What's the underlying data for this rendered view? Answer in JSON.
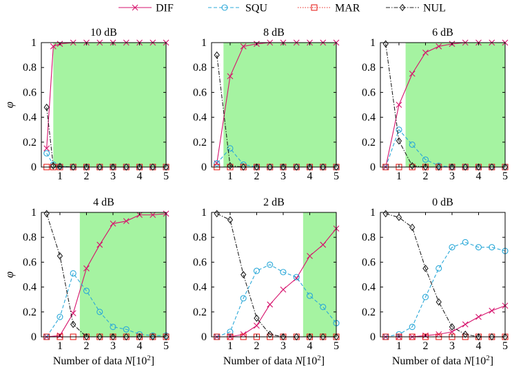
{
  "legend": [
    {
      "name": "DIF",
      "color": "#d6126c",
      "dash": "solid",
      "marker": "x"
    },
    {
      "name": "SQU",
      "color": "#2aa8d8",
      "dash": "dashed",
      "marker": "circle"
    },
    {
      "name": "MAR",
      "color": "#e8231e",
      "dash": "dotted",
      "marker": "square"
    },
    {
      "name": "NUL",
      "color": "#222222",
      "dash": "dashdot",
      "marker": "diamond"
    }
  ],
  "xlabel_prefix": "Number of data ",
  "xlabel_var": "N",
  "xlabel_open": "[10",
  "xlabel_exp": "2",
  "xlabel_close": "]",
  "ylabel": "φ",
  "chart_data": [
    {
      "type": "line",
      "title": "10 dB",
      "xlim": [
        0.3,
        5
      ],
      "ylim": [
        0,
        1
      ],
      "xticks": [
        "1",
        "2",
        "3",
        "4",
        "5"
      ],
      "yticks": [
        "0",
        "0.2",
        "0.4",
        "0.6",
        "0.8",
        "1"
      ],
      "highlight": [
        0.75,
        5
      ],
      "x": [
        0.5,
        0.75,
        1,
        1.5,
        2,
        2.5,
        3,
        3.5,
        4,
        4.5,
        5
      ],
      "series": [
        {
          "name": "DIF",
          "values": [
            0.15,
            0.97,
            0.99,
            1,
            1,
            1,
            1,
            1,
            1,
            1,
            1
          ]
        },
        {
          "name": "SQU",
          "values": [
            0.11,
            0.02,
            0.005,
            0,
            0,
            0,
            0,
            0,
            0,
            0,
            0
          ]
        },
        {
          "name": "MAR",
          "values": [
            0,
            0,
            0,
            0,
            0,
            0,
            0,
            0,
            0,
            0,
            0
          ]
        },
        {
          "name": "NUL",
          "values": [
            0.48,
            0.01,
            0.005,
            0,
            0,
            0,
            0,
            0,
            0,
            0,
            0
          ]
        }
      ]
    },
    {
      "type": "line",
      "title": "8 dB",
      "xlim": [
        0.3,
        5
      ],
      "ylim": [
        0,
        1
      ],
      "xticks": [
        "1",
        "2",
        "3",
        "4",
        "5"
      ],
      "yticks": [
        "0",
        "0.2",
        "0.4",
        "0.6",
        "0.8",
        "1"
      ],
      "highlight": [
        0.75,
        5
      ],
      "x": [
        0.5,
        1,
        1.5,
        2,
        2.5,
        3,
        3.5,
        4,
        4.5,
        5
      ],
      "series": [
        {
          "name": "DIF",
          "values": [
            0.03,
            0.73,
            0.97,
            0.99,
            1,
            1,
            1,
            1,
            1,
            1
          ]
        },
        {
          "name": "SQU",
          "values": [
            0.03,
            0.15,
            0.02,
            0,
            0,
            0,
            0,
            0,
            0,
            0
          ]
        },
        {
          "name": "MAR",
          "values": [
            0,
            0,
            0,
            0,
            0,
            0,
            0,
            0,
            0,
            0
          ]
        },
        {
          "name": "NUL",
          "values": [
            0.9,
            0.01,
            0,
            0,
            0,
            0,
            0,
            0,
            0,
            0
          ]
        }
      ]
    },
    {
      "type": "line",
      "title": "6 dB",
      "xlim": [
        0.3,
        5
      ],
      "ylim": [
        0,
        1
      ],
      "xticks": [
        "1",
        "2",
        "3",
        "4",
        "5"
      ],
      "yticks": [
        "0",
        "0.2",
        "0.4",
        "0.6",
        "0.8",
        "1"
      ],
      "highlight": [
        1.25,
        5
      ],
      "x": [
        0.5,
        1,
        1.5,
        2,
        2.5,
        3,
        3.5,
        4,
        4.5,
        5
      ],
      "series": [
        {
          "name": "DIF",
          "values": [
            0,
            0.5,
            0.75,
            0.92,
            0.97,
            0.99,
            1,
            1,
            1,
            1
          ]
        },
        {
          "name": "SQU",
          "values": [
            0,
            0.3,
            0.18,
            0.06,
            0.01,
            0,
            0,
            0,
            0,
            0
          ]
        },
        {
          "name": "MAR",
          "values": [
            0,
            0,
            0,
            0,
            0,
            0,
            0,
            0,
            0,
            0
          ]
        },
        {
          "name": "NUL",
          "values": [
            0.99,
            0.21,
            0.01,
            0,
            0,
            0,
            0,
            0,
            0,
            0
          ]
        }
      ]
    },
    {
      "type": "line",
      "title": "4 dB",
      "xlim": [
        0.3,
        5
      ],
      "ylim": [
        0,
        1
      ],
      "xticks": [
        "1",
        "2",
        "3",
        "4",
        "5"
      ],
      "yticks": [
        "0",
        "0.2",
        "0.4",
        "0.6",
        "0.8",
        "1"
      ],
      "highlight": [
        1.75,
        5
      ],
      "x": [
        0.5,
        1,
        1.5,
        2,
        2.5,
        3,
        3.5,
        4,
        4.5,
        5
      ],
      "series": [
        {
          "name": "DIF",
          "values": [
            0,
            0.01,
            0.19,
            0.55,
            0.74,
            0.91,
            0.93,
            0.98,
            0.98,
            0.99
          ]
        },
        {
          "name": "SQU",
          "values": [
            0,
            0.16,
            0.51,
            0.37,
            0.2,
            0.08,
            0.06,
            0.02,
            0.01,
            0.01
          ]
        },
        {
          "name": "MAR",
          "values": [
            0,
            0,
            0,
            0,
            0,
            0,
            0,
            0,
            0,
            0
          ]
        },
        {
          "name": "NUL",
          "values": [
            0.99,
            0.65,
            0.1,
            0,
            0,
            0,
            0,
            0,
            0,
            0
          ]
        }
      ]
    },
    {
      "type": "line",
      "title": "2 dB",
      "xlim": [
        0.3,
        5
      ],
      "ylim": [
        0,
        1
      ],
      "xticks": [
        "1",
        "2",
        "3",
        "4",
        "5"
      ],
      "yticks": [
        "0",
        "0.2",
        "0.4",
        "0.6",
        "0.8",
        "1"
      ],
      "highlight": [
        3.75,
        5
      ],
      "x": [
        0.5,
        1,
        1.5,
        2,
        2.5,
        3,
        3.5,
        4,
        4.5,
        5
      ],
      "series": [
        {
          "name": "DIF",
          "values": [
            0,
            0,
            0.02,
            0.09,
            0.26,
            0.38,
            0.47,
            0.65,
            0.74,
            0.87
          ]
        },
        {
          "name": "SQU",
          "values": [
            0,
            0.04,
            0.31,
            0.53,
            0.58,
            0.52,
            0.48,
            0.33,
            0.24,
            0.11
          ]
        },
        {
          "name": "MAR",
          "values": [
            0,
            0,
            0,
            0,
            0,
            0,
            0,
            0,
            0,
            0
          ]
        },
        {
          "name": "NUL",
          "values": [
            0.99,
            0.94,
            0.5,
            0.15,
            0.02,
            0,
            0,
            0,
            0,
            0
          ]
        }
      ]
    },
    {
      "type": "line",
      "title": "0 dB",
      "xlim": [
        0.3,
        5
      ],
      "ylim": [
        0,
        1
      ],
      "xticks": [
        "1",
        "2",
        "3",
        "4",
        "5"
      ],
      "yticks": [
        "0",
        "0.2",
        "0.4",
        "0.6",
        "0.8",
        "1"
      ],
      "highlight": null,
      "x": [
        0.5,
        1,
        1.5,
        2,
        2.5,
        3,
        3.5,
        4,
        4.5,
        5
      ],
      "series": [
        {
          "name": "DIF",
          "values": [
            0,
            0,
            0,
            0.01,
            0.02,
            0.04,
            0.1,
            0.16,
            0.21,
            0.25
          ]
        },
        {
          "name": "SQU",
          "values": [
            0,
            0.02,
            0.08,
            0.32,
            0.55,
            0.72,
            0.76,
            0.72,
            0.72,
            0.69
          ]
        },
        {
          "name": "MAR",
          "values": [
            0,
            0,
            0,
            0,
            0,
            0,
            0,
            0,
            0,
            0
          ]
        },
        {
          "name": "NUL",
          "values": [
            0.99,
            0.96,
            0.88,
            0.55,
            0.28,
            0.08,
            0.02,
            0,
            0,
            0
          ]
        }
      ]
    }
  ]
}
